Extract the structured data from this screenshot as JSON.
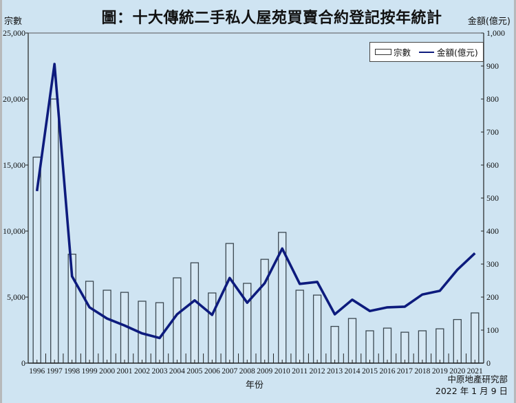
{
  "title": "圖：十大傳統二手私人屋苑買賣合約登記按年統計",
  "axis_labels": {
    "left": "宗數",
    "right": "金額(億元)",
    "x": "年份"
  },
  "source": {
    "org": "中原地產研究部",
    "date": "2022 年 1 月 9 日"
  },
  "legend": {
    "bar_label": "宗數",
    "line_label": "金額(億元)"
  },
  "colors": {
    "background": "#cfe4f2",
    "line": "#0d1b7d",
    "bar_stroke": "#3b4750",
    "bar_fill": "#d6e8f4"
  },
  "chart_data": {
    "type": "bar+line",
    "title": "圖：十大傳統二手私人屋苑買賣合約登記按年統計",
    "xlabel": "年份",
    "ylabel": "宗數",
    "y2label": "金額(億元)",
    "ylim": [
      0,
      25000
    ],
    "y2lim": [
      0,
      1000
    ],
    "yticks": [
      "0",
      "5,000",
      "10,000",
      "15,000",
      "20,000",
      "25,000"
    ],
    "y2ticks": [
      "0",
      "100",
      "200",
      "300",
      "400",
      "500",
      "600",
      "700",
      "800",
      "900",
      "1,000"
    ],
    "categories": [
      "1996",
      "1997",
      "1998",
      "1999",
      "2000",
      "2001",
      "2002",
      "2003",
      "2004",
      "2005",
      "2006",
      "2007",
      "2008",
      "2009",
      "2010",
      "2011",
      "2012",
      "2013",
      "2014",
      "2015",
      "2016",
      "2017",
      "2018",
      "2019",
      "2020",
      "2021"
    ],
    "series": [
      {
        "name": "宗數",
        "type": "bar",
        "axis": "left",
        "values": [
          15600,
          20000,
          8250,
          6200,
          5520,
          5360,
          4690,
          4580,
          6460,
          7600,
          5310,
          9060,
          6040,
          7860,
          9900,
          5520,
          5150,
          2780,
          3380,
          2450,
          2650,
          2340,
          2450,
          2600,
          3300,
          3800
        ]
      },
      {
        "name": "金額(億元)",
        "type": "line",
        "axis": "right",
        "values": [
          521,
          906,
          263,
          169,
          135,
          114,
          90,
          76,
          148,
          190,
          146,
          258,
          183,
          242,
          347,
          240,
          246,
          148,
          192,
          158,
          169,
          171,
          208,
          219,
          283,
          333
        ]
      }
    ],
    "legend_position": "top-right",
    "grid": false,
    "source": "中原地產研究部 2022 年 1 月 9 日"
  }
}
